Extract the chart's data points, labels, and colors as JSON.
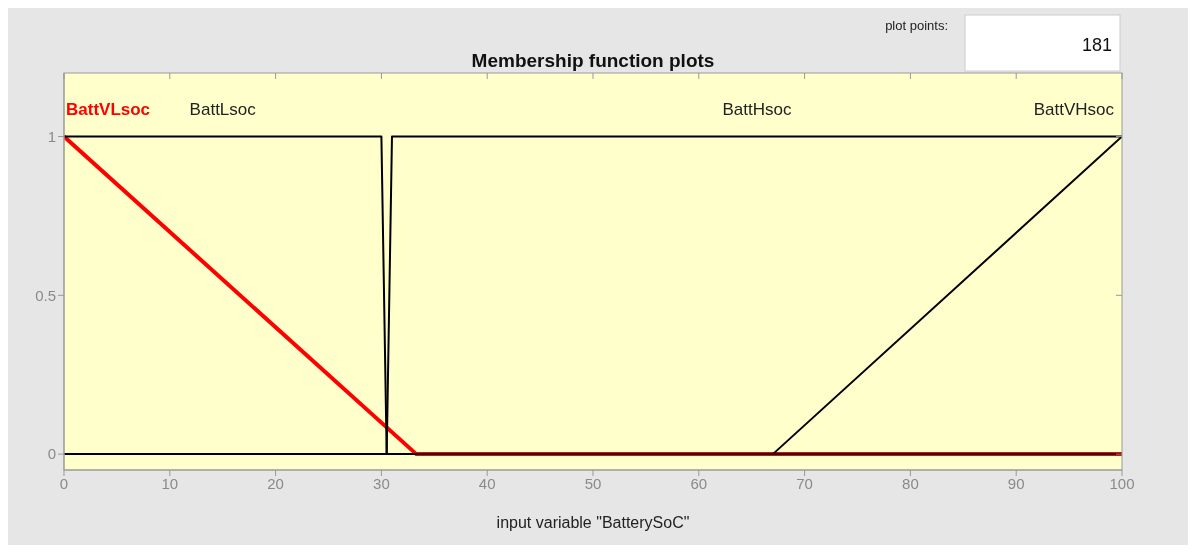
{
  "chart_data": {
    "type": "line",
    "title": "Membership function plots",
    "xlabel": "input variable \"BatterySoC\"",
    "annotations": [
      "plot points:",
      "181"
    ],
    "series": [
      {
        "name": "BattVLsoc",
        "color": "#ff0000",
        "x": [
          0,
          33.3,
          100
        ],
        "values": [
          1,
          0,
          0
        ]
      },
      {
        "name": "BattLsoc",
        "color": "#000000",
        "x": [
          0,
          30,
          30.5,
          100
        ],
        "values": [
          1,
          1,
          0,
          0
        ]
      },
      {
        "name": "BattHsoc",
        "color": "#000000",
        "x": [
          0,
          30.5,
          31,
          100
        ],
        "values": [
          0,
          0,
          1,
          1
        ]
      },
      {
        "name": "BattVHsoc",
        "color": "#000000",
        "x": [
          0,
          67,
          100
        ],
        "values": [
          0,
          0,
          1
        ]
      }
    ],
    "xlim": [
      0,
      100
    ],
    "xticks": [
      0,
      10,
      20,
      30,
      40,
      50,
      60,
      70,
      80,
      90,
      100
    ],
    "ylim": [
      -0.05,
      1.2
    ],
    "yticks": [
      0,
      0.5,
      1
    ],
    "grid": false,
    "marker": "none",
    "line_style": "solid"
  }
}
